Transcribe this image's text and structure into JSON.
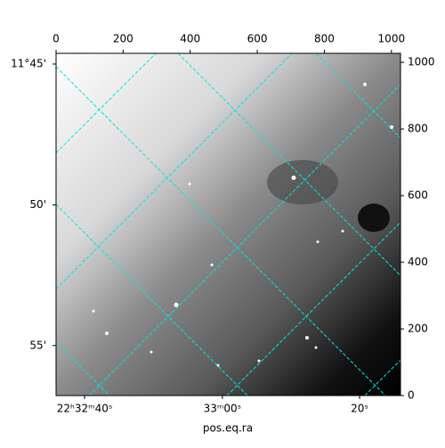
{
  "chart_data": {
    "type": "image",
    "xlabel": "pos.eq.ra",
    "xlim": [
      0,
      1027
    ],
    "ylim": [
      0,
      1027
    ],
    "xticks": [
      0,
      200,
      400,
      600,
      800,
      1000
    ],
    "yticks": [
      0,
      200,
      400,
      600,
      800,
      1000
    ],
    "ra_ticks": [
      {
        "value": 85,
        "label": "22ʰ32ᵐ40ˢ"
      },
      {
        "value": 496,
        "label": "33ᵐ00ˢ"
      },
      {
        "value": 905,
        "label": "20ˢ"
      }
    ],
    "dec_ticks": [
      {
        "value": 995,
        "label": "11°45'"
      },
      {
        "value": 572,
        "label": "50'"
      },
      {
        "value": 150,
        "label": "55'"
      }
    ],
    "grid_color": "#00e5e5"
  }
}
